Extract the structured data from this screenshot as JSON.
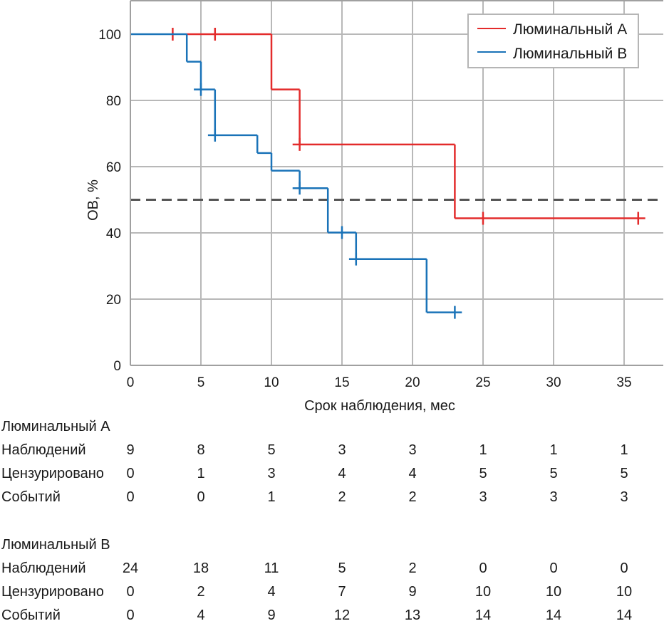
{
  "chart_data": {
    "type": "line",
    "subtype": "kaplan-meier-step",
    "title": "",
    "xlabel": "Срок наблюдения, мес",
    "ylabel": "ОВ, %",
    "xlim": [
      0,
      38
    ],
    "ylim": [
      0,
      110
    ],
    "xticks": [
      0,
      5,
      10,
      15,
      20,
      25,
      30,
      35
    ],
    "yticks": [
      0,
      20,
      40,
      60,
      80,
      100
    ],
    "grid": true,
    "reference_line": {
      "y": 50,
      "style": "dashed",
      "color": "#555555"
    },
    "legend": {
      "position": "top-right",
      "entries": [
        "Люминальный А",
        "Люминальный В"
      ]
    },
    "series": [
      {
        "name": "Люминальный А",
        "color": "#e32b2b",
        "steps": [
          {
            "x_start": 4,
            "x_end": 10,
            "y": 100
          },
          {
            "x_start": 10,
            "x_end": 12,
            "y": 83.3
          },
          {
            "x_start": 11.5,
            "x_end": 23,
            "y": 66.7
          },
          {
            "x_start": 23,
            "x_end": 36.5,
            "y": 44.4
          }
        ],
        "censored": [
          {
            "x": 3,
            "y": 100
          },
          {
            "x": 6,
            "y": 100
          },
          {
            "x": 12,
            "y": 66.7
          },
          {
            "x": 25,
            "y": 44.4
          },
          {
            "x": 36,
            "y": 44.4
          }
        ]
      },
      {
        "name": "Люминальный В",
        "color": "#1a73b8",
        "steps": [
          {
            "x_start": 0,
            "x_end": 4,
            "y": 100
          },
          {
            "x_start": 4,
            "x_end": 5,
            "y": 91.7
          },
          {
            "x_start": 4.5,
            "x_end": 6,
            "y": 83.3
          },
          {
            "x_start": 5.5,
            "x_end": 9,
            "y": 69.5
          },
          {
            "x_start": 9,
            "x_end": 10,
            "y": 64.1
          },
          {
            "x_start": 10,
            "x_end": 12,
            "y": 58.8
          },
          {
            "x_start": 11.5,
            "x_end": 14,
            "y": 53.5
          },
          {
            "x_start": 14,
            "x_end": 16,
            "y": 40.1
          },
          {
            "x_start": 15.5,
            "x_end": 21,
            "y": 32.1
          },
          {
            "x_start": 21,
            "x_end": 23.5,
            "y": 16.0
          }
        ],
        "censored": [
          {
            "x": 5,
            "y": 83.3
          },
          {
            "x": 6,
            "y": 69.5
          },
          {
            "x": 12,
            "y": 53.5
          },
          {
            "x": 15,
            "y": 40.1
          },
          {
            "x": 16,
            "y": 32.1
          },
          {
            "x": 23,
            "y": 16.0
          }
        ]
      }
    ]
  },
  "risk_table": {
    "time_points": [
      0,
      5,
      10,
      15,
      20,
      25,
      30,
      35
    ],
    "groups": [
      {
        "title": "Люминальный А",
        "rows": [
          {
            "label": "Наблюдений",
            "values": [
              "9",
              "8",
              "5",
              "3",
              "3",
              "1",
              "1",
              "1"
            ]
          },
          {
            "label": "Цензурировано",
            "values": [
              "0",
              "1",
              "3",
              "4",
              "4",
              "5",
              "5",
              "5"
            ]
          },
          {
            "label": "Событий",
            "values": [
              "0",
              "0",
              "1",
              "2",
              "2",
              "3",
              "3",
              "3"
            ]
          }
        ]
      },
      {
        "title": "Люминальный В",
        "rows": [
          {
            "label": "Наблюдений",
            "values": [
              "24",
              "18",
              "11",
              "5",
              "2",
              "0",
              "0",
              "0"
            ]
          },
          {
            "label": "Цензурировано",
            "values": [
              "0",
              "2",
              "4",
              "7",
              "9",
              "10",
              "10",
              "10"
            ]
          },
          {
            "label": "Событий",
            "values": [
              "0",
              "4",
              "9",
              "12",
              "13",
              "14",
              "14",
              "14"
            ]
          }
        ]
      }
    ]
  }
}
